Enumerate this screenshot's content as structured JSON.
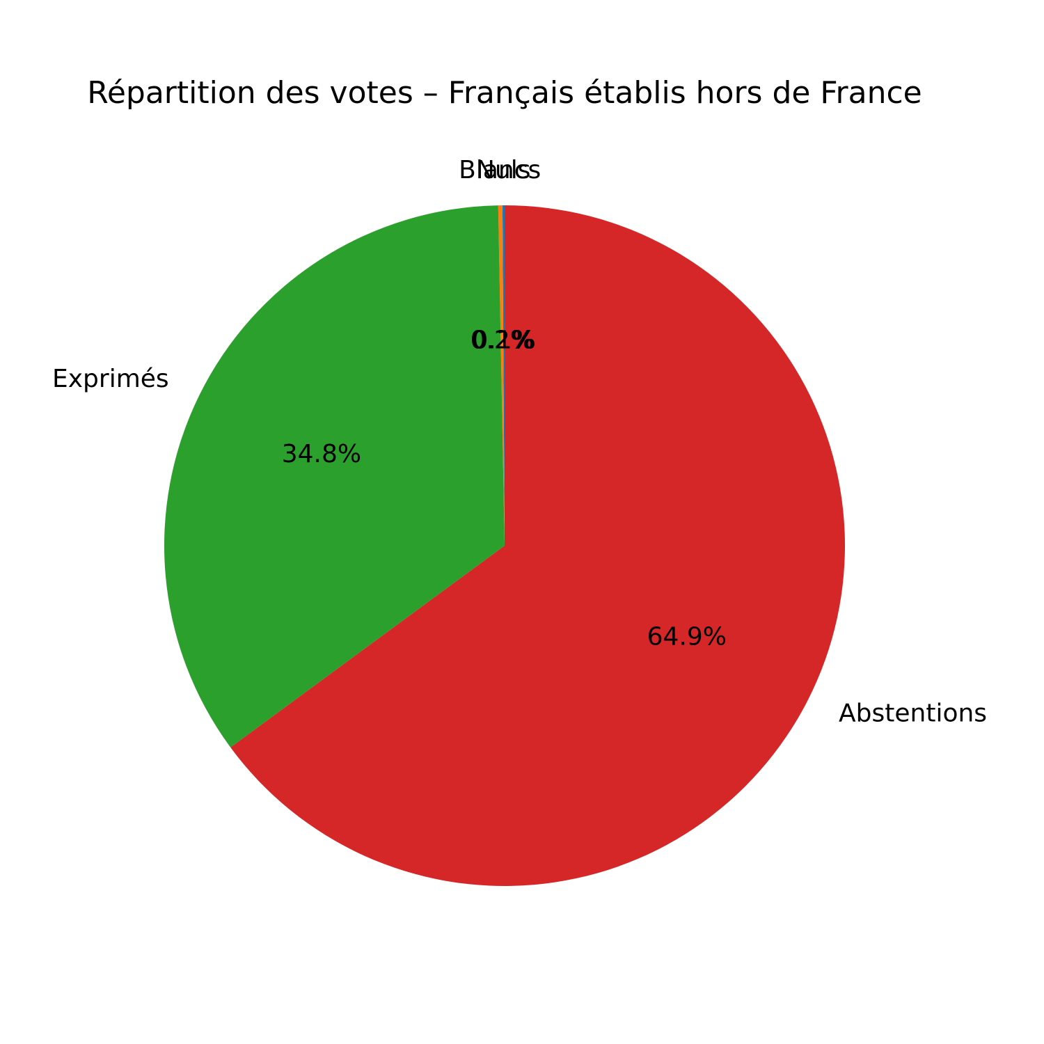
{
  "chart_data": {
    "type": "pie",
    "title": "Répartition des votes – Français établis hors de France",
    "categories": [
      "Nuls",
      "Blancs",
      "Exprimés",
      "Abstentions"
    ],
    "values": [
      0.1,
      0.2,
      34.8,
      64.9
    ],
    "labels": [
      "0.1%",
      "0.2%",
      "34.8%",
      "64.9%"
    ],
    "colors": [
      "#1f77b4",
      "#ff7f0e",
      "#2ca02c",
      "#d62728"
    ],
    "start_angle": 90,
    "direction": "counterclockwise",
    "legend": "none"
  }
}
